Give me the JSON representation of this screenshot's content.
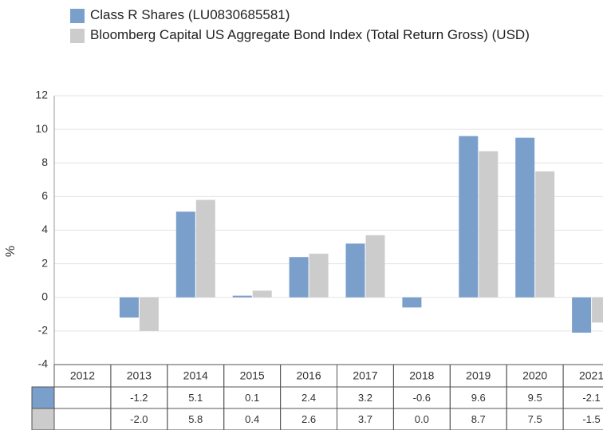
{
  "chart_data": {
    "type": "bar",
    "ylabel": "%",
    "categories": [
      "2012",
      "2013",
      "2014",
      "2015",
      "2016",
      "2017",
      "2018",
      "2019",
      "2020",
      "2021"
    ],
    "series": [
      {
        "name": "Class R Shares (LU0830685581)",
        "color": "#7a9fcb",
        "values": [
          null,
          -1.2,
          5.1,
          0.1,
          2.4,
          3.2,
          -0.6,
          9.6,
          9.5,
          -2.1
        ],
        "value_labels": [
          null,
          "-1.2",
          "5.1",
          "0.1",
          "2.4",
          "3.2",
          "-0.6",
          "9.6",
          "9.5",
          "-2.1"
        ]
      },
      {
        "name": "Bloomberg Capital US Aggregate Bond Index (Total Return Gross) (USD)",
        "color": "#cccccc",
        "values": [
          null,
          -2.0,
          5.8,
          0.4,
          2.6,
          3.7,
          0.0,
          8.7,
          7.5,
          -1.5
        ],
        "value_labels": [
          null,
          "-2.0",
          "5.8",
          "0.4",
          "2.6",
          "3.7",
          "0.0",
          "8.7",
          "7.5",
          "-1.5"
        ]
      }
    ],
    "ylim": [
      -4,
      12
    ],
    "yticks": [
      -4,
      -2,
      0,
      2,
      4,
      6,
      8,
      10,
      12
    ],
    "grid": true
  }
}
